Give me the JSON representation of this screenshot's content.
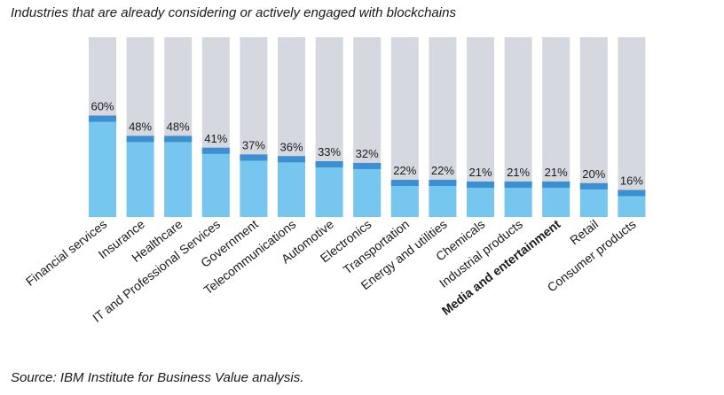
{
  "chart_data": {
    "type": "bar",
    "title": "Industries that are already considering or actively engaged with blockchains",
    "categories": [
      "Financial services",
      "Insurance",
      "Healthcare",
      "IT and Professional Services",
      "Government",
      "Telecommunications",
      "Automotive",
      "Electronics",
      "Transportation",
      "Energy and utilities",
      "Chemicals",
      "Industrial products",
      "Media and entertainment",
      "Retail",
      "Consumer products"
    ],
    "values": [
      60,
      48,
      48,
      41,
      37,
      36,
      33,
      32,
      22,
      22,
      21,
      21,
      21,
      20,
      16
    ],
    "value_labels": [
      "60%",
      "48%",
      "48%",
      "41%",
      "37%",
      "36%",
      "33%",
      "32%",
      "22%",
      "22%",
      "21%",
      "21%",
      "21%",
      "20%",
      "16%"
    ],
    "highlighted_category": "Media and entertainment",
    "ylim": [
      0,
      100
    ],
    "xlabel": "",
    "ylabel": "",
    "grid": false,
    "colors": {
      "background_bar": "#d5d9df",
      "fill": "#77c6ef",
      "cap": "#3d8fd0",
      "label": "#1a1a1a"
    }
  },
  "source": "Source: IBM Institute for Business Value analysis."
}
